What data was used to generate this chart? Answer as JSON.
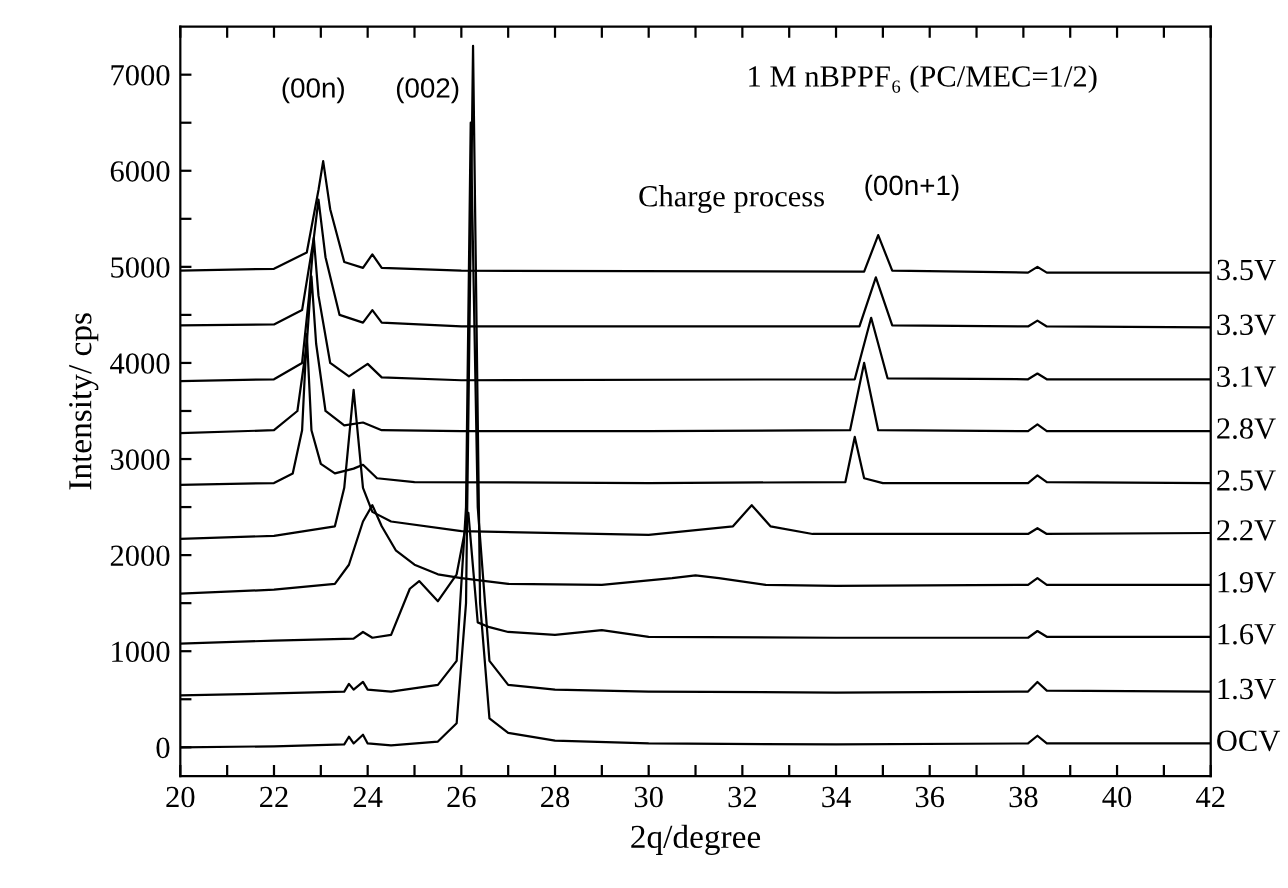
{
  "chart_data": {
    "type": "line",
    "title": "1 M nBPPF₆ (PC/MEC=1/2)",
    "xlabel": "2q/degree",
    "ylabel": "Intensity/ cps",
    "annotations": [
      "(00n)",
      "(002)",
      "(00n+1)",
      "Charge process"
    ],
    "xlim": [
      20,
      42
    ],
    "ylim": [
      -300,
      7500
    ],
    "xticks": [
      20,
      {
        "value": 21,
        "label": null
      },
      22,
      {
        "value": 23,
        "label": null
      },
      24,
      {
        "value": 25,
        "label": null
      },
      26,
      {
        "value": 27,
        "label": null
      },
      28,
      {
        "value": 29,
        "label": null
      },
      30,
      {
        "value": 31,
        "label": null
      },
      32,
      {
        "value": 33,
        "label": null
      },
      34,
      {
        "value": 35,
        "label": null
      },
      36,
      {
        "value": 37,
        "label": null
      },
      38,
      {
        "value": 39,
        "label": null
      },
      40,
      {
        "value": 41,
        "label": null
      },
      42
    ],
    "yticks": [
      0,
      {
        "value": 500,
        "label": null
      },
      1000,
      {
        "value": 1500,
        "label": null
      },
      2000,
      {
        "value": 2500,
        "label": null
      },
      3000,
      {
        "value": 3500,
        "label": null
      },
      4000,
      {
        "value": 4500,
        "label": null
      },
      5000,
      {
        "value": 5500,
        "label": null
      },
      6000,
      {
        "value": 6500,
        "label": null
      },
      7000
    ],
    "grid": false,
    "legend": false,
    "marker": "none",
    "line_style": "solid",
    "series": [
      {
        "name": "OCV",
        "color": "#000000",
        "x": [
          20,
          22,
          23.5,
          23.6,
          23.7,
          23.9,
          24.0,
          24.5,
          25.5,
          25.9,
          26.1,
          26.25,
          26.4,
          26.6,
          27,
          28,
          30,
          34,
          38.1,
          38.3,
          38.5,
          42
        ],
        "values": [
          0,
          10,
          30,
          110,
          40,
          130,
          40,
          20,
          60,
          250,
          1500,
          7300,
          1500,
          300,
          150,
          70,
          40,
          30,
          40,
          120,
          40,
          40
        ]
      },
      {
        "name": "1.3V",
        "color": "#000000",
        "x": [
          20,
          22,
          23.5,
          23.6,
          23.7,
          23.9,
          24.0,
          24.5,
          25.5,
          25.9,
          26.1,
          26.2,
          26.35,
          26.6,
          27,
          28,
          30,
          34,
          38.1,
          38.3,
          38.5,
          42
        ],
        "values": [
          540,
          560,
          580,
          660,
          600,
          680,
          600,
          580,
          650,
          900,
          2500,
          6500,
          2500,
          900,
          650,
          600,
          580,
          570,
          580,
          680,
          590,
          580
        ]
      },
      {
        "name": "1.6V",
        "color": "#000000",
        "x": [
          20,
          22,
          23.7,
          23.9,
          24.1,
          24.5,
          24.9,
          25.1,
          25.5,
          25.9,
          26.15,
          26.35,
          26.6,
          27,
          28,
          29,
          30,
          34,
          38.1,
          38.3,
          38.5,
          42
        ],
        "values": [
          1080,
          1110,
          1130,
          1200,
          1140,
          1170,
          1650,
          1730,
          1520,
          1800,
          2440,
          1300,
          1250,
          1200,
          1170,
          1220,
          1150,
          1140,
          1140,
          1210,
          1150,
          1150
        ]
      },
      {
        "name": "1.9V",
        "color": "#000000",
        "x": [
          20,
          22,
          23.3,
          23.6,
          23.9,
          24.1,
          24.3,
          24.6,
          25,
          25.5,
          26,
          27,
          29,
          30.5,
          31,
          31.5,
          32.5,
          34,
          38.1,
          38.3,
          38.5,
          42
        ],
        "values": [
          1600,
          1640,
          1700,
          1900,
          2350,
          2520,
          2300,
          2050,
          1900,
          1800,
          1760,
          1700,
          1690,
          1760,
          1790,
          1760,
          1690,
          1680,
          1690,
          1760,
          1690,
          1690
        ]
      },
      {
        "name": "2.2V",
        "color": "#000000",
        "x": [
          20,
          22,
          23.3,
          23.5,
          23.7,
          23.9,
          24.1,
          24.5,
          26,
          30,
          31.8,
          32.2,
          32.6,
          33.5,
          38.1,
          38.3,
          38.5,
          42
        ],
        "values": [
          2170,
          2200,
          2300,
          2700,
          3720,
          2700,
          2450,
          2350,
          2250,
          2210,
          2300,
          2520,
          2300,
          2220,
          2220,
          2280,
          2220,
          2230
        ]
      },
      {
        "name": "2.5V",
        "color": "#000000",
        "x": [
          20,
          22,
          22.4,
          22.6,
          22.7,
          22.8,
          23.0,
          23.3,
          23.7,
          23.9,
          24.2,
          25,
          30,
          34.2,
          34.4,
          34.6,
          35,
          38.1,
          38.3,
          38.5,
          42
        ],
        "values": [
          2730,
          2750,
          2850,
          3300,
          4300,
          3300,
          2950,
          2850,
          2900,
          2940,
          2800,
          2760,
          2750,
          2760,
          3230,
          2800,
          2750,
          2750,
          2830,
          2760,
          2750
        ]
      },
      {
        "name": "2.8V",
        "color": "#000000",
        "x": [
          20,
          22,
          22.5,
          22.7,
          22.8,
          22.9,
          23.1,
          23.5,
          23.9,
          24.3,
          26,
          30,
          34.3,
          34.6,
          34.9,
          38.1,
          38.3,
          38.5,
          42
        ],
        "values": [
          3270,
          3300,
          3500,
          4200,
          4900,
          4200,
          3500,
          3350,
          3380,
          3300,
          3290,
          3290,
          3300,
          4000,
          3300,
          3290,
          3360,
          3290,
          3290
        ]
      },
      {
        "name": "3.1V",
        "color": "#000000",
        "x": [
          20,
          22,
          22.6,
          22.75,
          22.85,
          22.95,
          23.2,
          23.6,
          24.0,
          24.3,
          26,
          34.4,
          34.75,
          35.1,
          38.1,
          38.3,
          38.5,
          42
        ],
        "values": [
          3810,
          3830,
          4000,
          4700,
          5300,
          4700,
          4000,
          3860,
          3990,
          3850,
          3820,
          3830,
          4470,
          3840,
          3830,
          3890,
          3830,
          3830
        ]
      },
      {
        "name": "3.3V",
        "color": "#000000",
        "x": [
          20,
          22,
          22.6,
          22.85,
          22.95,
          23.1,
          23.4,
          23.9,
          24.1,
          24.3,
          26,
          34.5,
          34.85,
          35.2,
          38.1,
          38.3,
          38.5,
          42
        ],
        "values": [
          4390,
          4400,
          4550,
          5300,
          5700,
          5100,
          4500,
          4420,
          4550,
          4420,
          4380,
          4380,
          4890,
          4390,
          4380,
          4440,
          4380,
          4370
        ]
      },
      {
        "name": "3.5V",
        "color": "#000000",
        "x": [
          20,
          22,
          22.7,
          22.95,
          23.05,
          23.2,
          23.5,
          23.9,
          24.1,
          24.3,
          26,
          34.6,
          34.9,
          35.2,
          38.1,
          38.3,
          38.5,
          42
        ],
        "values": [
          4960,
          4980,
          5150,
          5800,
          6100,
          5600,
          5050,
          4990,
          5130,
          4990,
          4960,
          4950,
          5330,
          4960,
          4940,
          5000,
          4940,
          4940
        ]
      }
    ]
  }
}
